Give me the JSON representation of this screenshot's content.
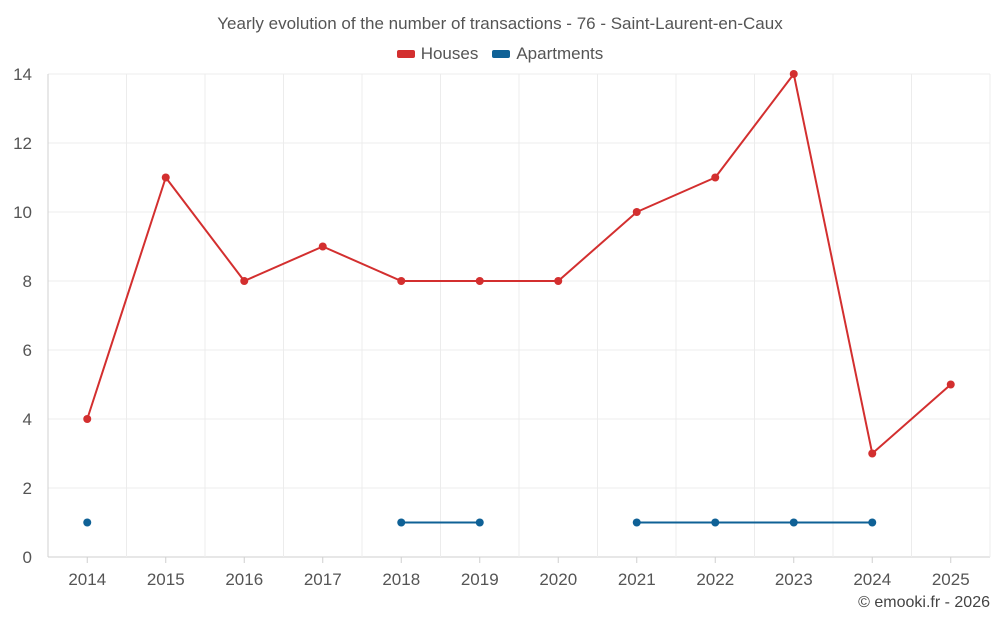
{
  "chart_data": {
    "type": "line",
    "title": "Yearly evolution of the number of transactions - 76 - Saint-Laurent-en-Caux",
    "xlabel": "",
    "ylabel": "",
    "x": [
      "2014",
      "2015",
      "2016",
      "2017",
      "2018",
      "2019",
      "2020",
      "2021",
      "2022",
      "2023",
      "2024",
      "2025"
    ],
    "yticks": [
      0,
      2,
      4,
      6,
      8,
      10,
      12,
      14
    ],
    "ylim": [
      0,
      14
    ],
    "grid": true,
    "legend_position": "top-center",
    "series": [
      {
        "name": "Houses",
        "color": "#d32f2f",
        "values": [
          4,
          11,
          8,
          9,
          8,
          8,
          8,
          10,
          11,
          14,
          3,
          5
        ]
      },
      {
        "name": "Apartments",
        "color": "#0f6196",
        "values": [
          1,
          null,
          null,
          null,
          1,
          1,
          null,
          1,
          1,
          1,
          1,
          null
        ]
      }
    ]
  },
  "credit": "© emooki.fr - 2026"
}
